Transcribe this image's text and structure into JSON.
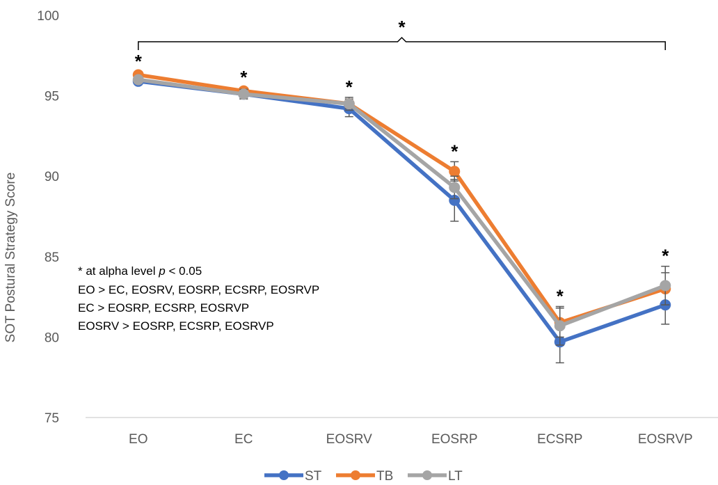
{
  "chart_data": {
    "type": "line",
    "title": "",
    "xlabel": "",
    "ylabel": "SOT Postural Strategy Score",
    "ylim": [
      75,
      100
    ],
    "yticks": [
      75,
      80,
      85,
      90,
      95,
      100
    ],
    "grid": false,
    "legend_position": "bottom",
    "categories": [
      "EO",
      "EC",
      "EOSRV",
      "EOSRP",
      "ECSRP",
      "EOSRVP"
    ],
    "series": [
      {
        "name": "ST",
        "color": "#4472C4",
        "values": [
          95.9,
          95.1,
          94.2,
          88.5,
          79.7,
          82.0
        ],
        "err": [
          0.2,
          0.3,
          0.5,
          1.3,
          1.3,
          1.2
        ]
      },
      {
        "name": "TB",
        "color": "#ED7D31",
        "values": [
          96.3,
          95.3,
          94.5,
          90.3,
          80.9,
          83.0
        ],
        "err": [
          0.2,
          0.2,
          0.3,
          0.6,
          0.9,
          1.0
        ]
      },
      {
        "name": "LT",
        "color": "#A5A5A5",
        "values": [
          96.0,
          95.1,
          94.5,
          89.3,
          80.7,
          83.2
        ],
        "err": [
          0.2,
          0.3,
          0.4,
          0.7,
          1.2,
          1.2
        ]
      }
    ],
    "point_significance": [
      "*",
      "*",
      "*",
      "*",
      "*",
      "*"
    ],
    "overall_significance": "*",
    "annotations": {
      "line1_prefix": "* at alpha level ",
      "line1_italic": "p",
      "line1_suffix": " < 0.05",
      "line2": "EO > EC, EOSRV, EOSRP, ECSRP, EOSRVP",
      "line3": "EC > EOSRP, ECSRP, EOSRVP",
      "line4": "EOSRV > EOSRP, ECSRP, EOSRVP"
    }
  }
}
